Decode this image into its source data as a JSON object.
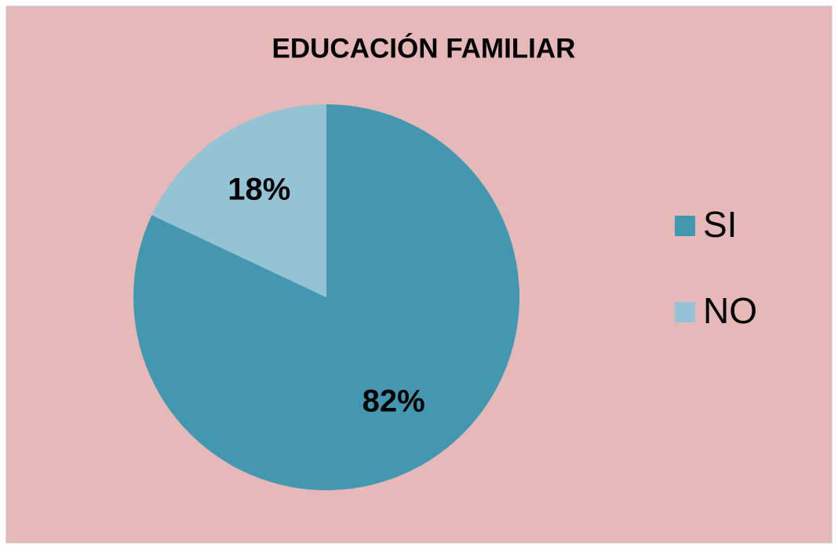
{
  "chart_data": {
    "type": "pie",
    "title": "EDUCACIÓN FAMILIAR",
    "categories": [
      "SI",
      "NO"
    ],
    "values": [
      82,
      18
    ],
    "value_labels": [
      "82%",
      "18%"
    ],
    "colors": [
      "#4397b0",
      "#93c3d5"
    ],
    "legend": "right"
  }
}
